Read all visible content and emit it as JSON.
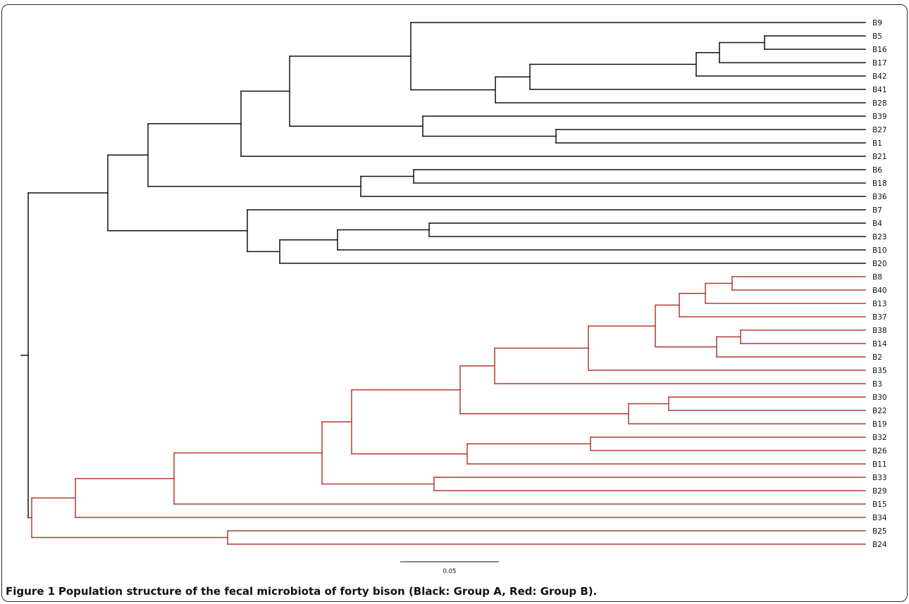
{
  "figure": {
    "caption_label": "Figure 1",
    "caption_text": "Population structure of the fecal microbiota of forty bison (Black: Group A, Red: Group B).",
    "scale_bar_label": "0.05"
  },
  "colors": {
    "group_a": "#111111",
    "group_b": "#b03a32"
  },
  "tree": {
    "leaves": [
      {
        "name": "B9",
        "group": "A"
      },
      {
        "name": "B5",
        "group": "A"
      },
      {
        "name": "B16",
        "group": "A"
      },
      {
        "name": "B17",
        "group": "A"
      },
      {
        "name": "B42",
        "group": "A"
      },
      {
        "name": "B41",
        "group": "A"
      },
      {
        "name": "B28",
        "group": "A"
      },
      {
        "name": "B39",
        "group": "A"
      },
      {
        "name": "B27",
        "group": "A"
      },
      {
        "name": "B1",
        "group": "A"
      },
      {
        "name": "B21",
        "group": "A"
      },
      {
        "name": "B6",
        "group": "A"
      },
      {
        "name": "B18",
        "group": "A"
      },
      {
        "name": "B36",
        "group": "A"
      },
      {
        "name": "B7",
        "group": "A"
      },
      {
        "name": "B4",
        "group": "A"
      },
      {
        "name": "B23",
        "group": "A"
      },
      {
        "name": "B10",
        "group": "A"
      },
      {
        "name": "B20",
        "group": "A"
      },
      {
        "name": "B8",
        "group": "B"
      },
      {
        "name": "B40",
        "group": "B"
      },
      {
        "name": "B13",
        "group": "B"
      },
      {
        "name": "B37",
        "group": "B"
      },
      {
        "name": "B38",
        "group": "B"
      },
      {
        "name": "B14",
        "group": "B"
      },
      {
        "name": "B2",
        "group": "B"
      },
      {
        "name": "B35",
        "group": "B"
      },
      {
        "name": "B3",
        "group": "B"
      },
      {
        "name": "B30",
        "group": "B"
      },
      {
        "name": "B22",
        "group": "B"
      },
      {
        "name": "B19",
        "group": "B"
      },
      {
        "name": "B32",
        "group": "B"
      },
      {
        "name": "B26",
        "group": "B"
      },
      {
        "name": "B11",
        "group": "B"
      },
      {
        "name": "B33",
        "group": "B"
      },
      {
        "name": "B29",
        "group": "B"
      },
      {
        "name": "B15",
        "group": "B"
      },
      {
        "name": "B34",
        "group": "B"
      },
      {
        "name": "B25",
        "group": "B"
      },
      {
        "name": "B24",
        "group": "B"
      }
    ]
  }
}
